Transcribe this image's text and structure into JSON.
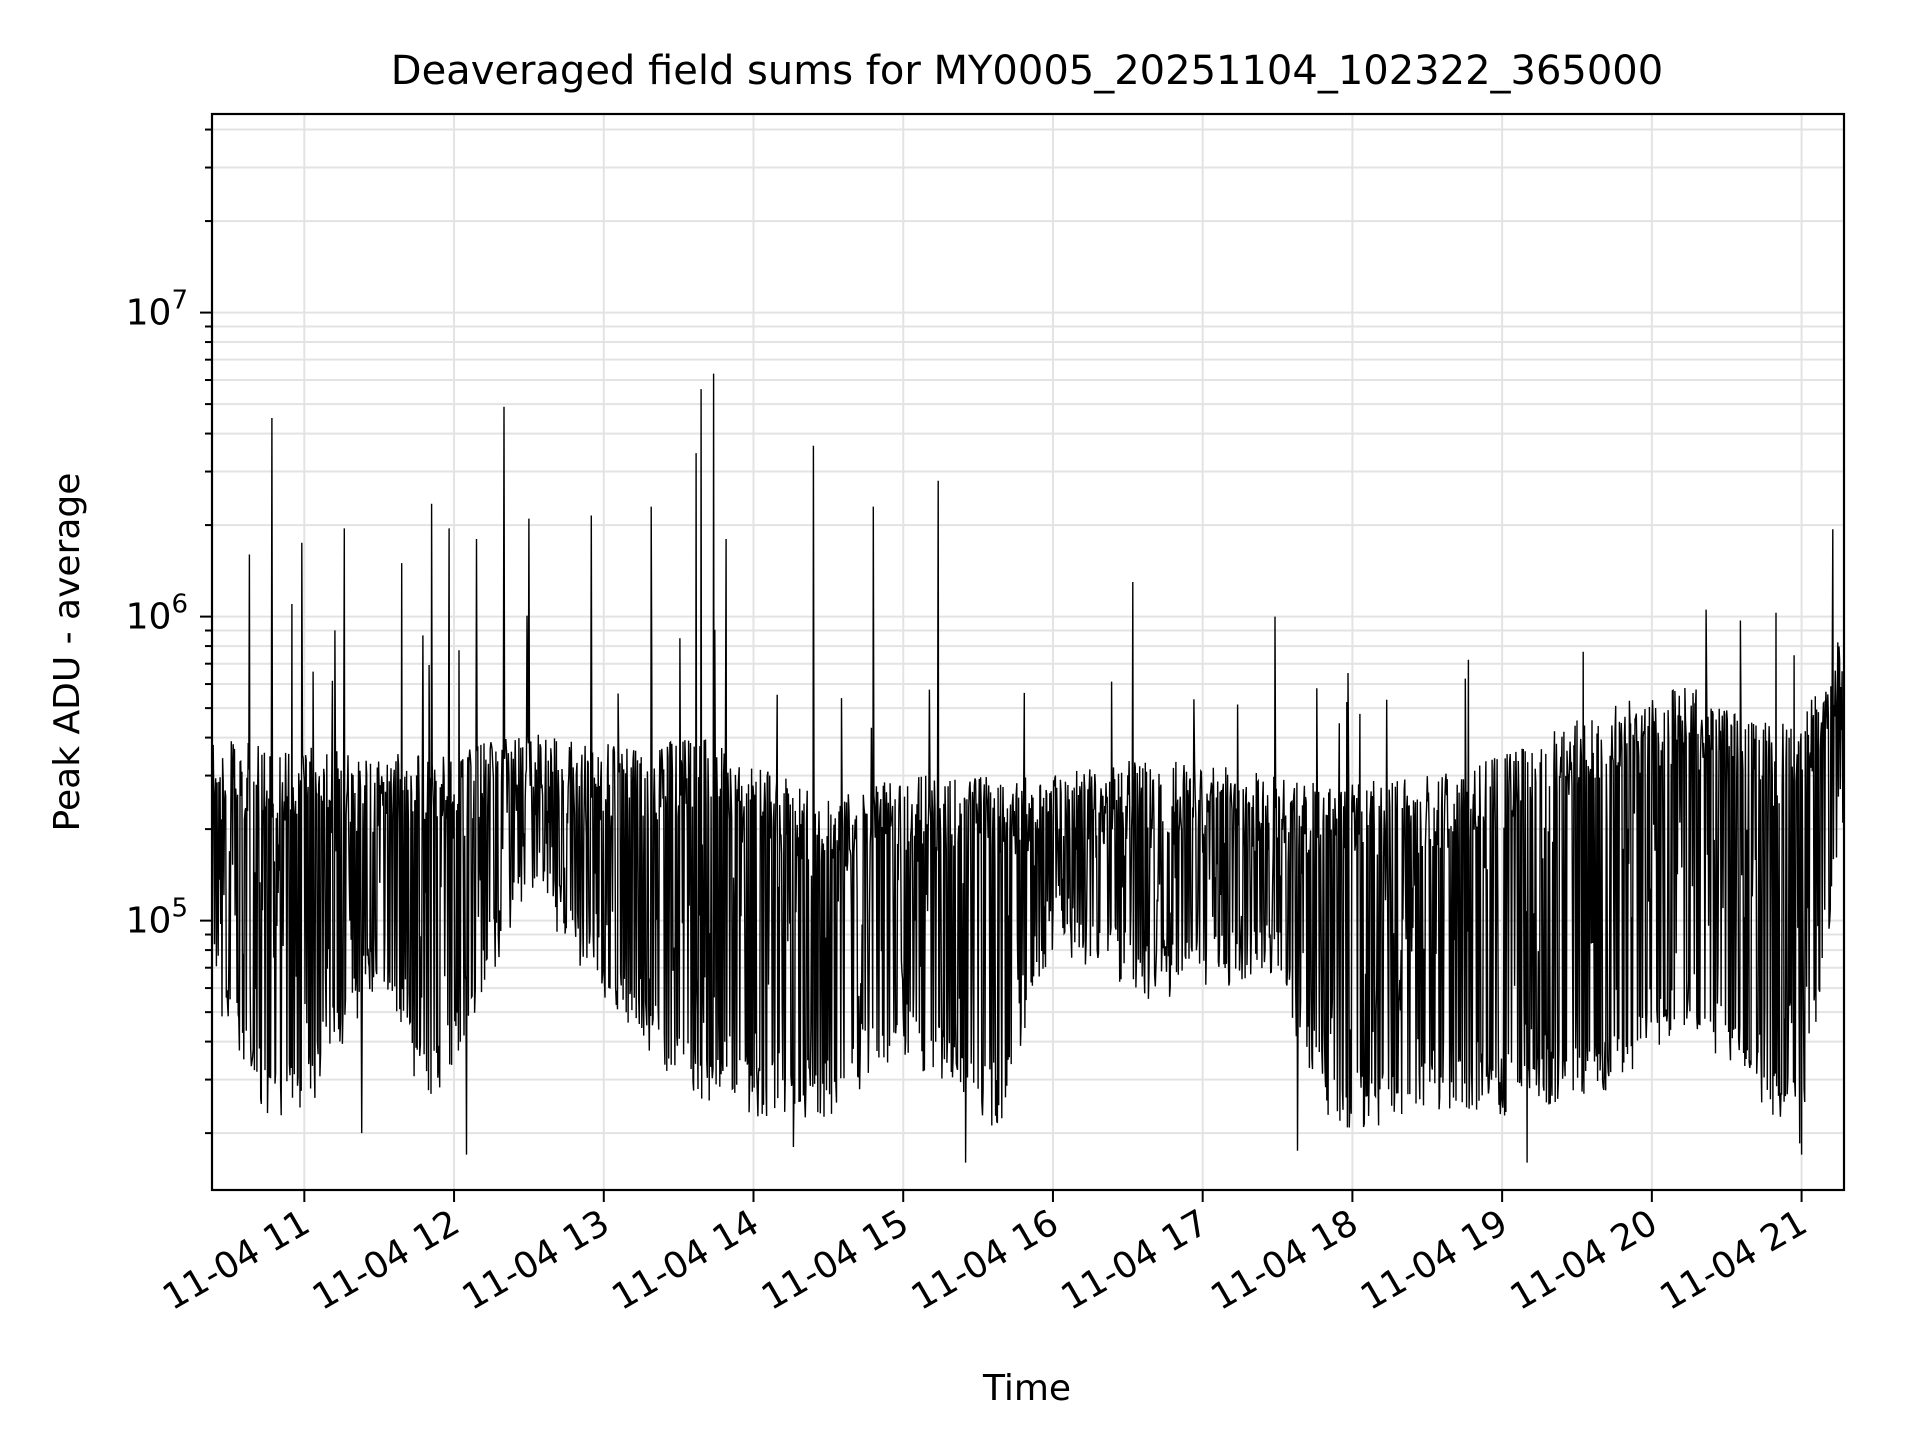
{
  "chart_data": {
    "type": "line",
    "title": "Deaveraged field sums for MY0005_20251104_102322_365000",
    "xlabel": "Time",
    "ylabel": "Peak ADU - average",
    "yscale": "log",
    "ylim": [
      13000,
      45000000
    ],
    "xlim": [
      "11-04 10:23",
      "11-04 21:17"
    ],
    "grid": true,
    "line_color": "#000000",
    "x_ticks": [
      {
        "time": "11-04 11:00",
        "label": "11-04 11"
      },
      {
        "time": "11-04 12:00",
        "label": "11-04 12"
      },
      {
        "time": "11-04 13:00",
        "label": "11-04 13"
      },
      {
        "time": "11-04 14:00",
        "label": "11-04 14"
      },
      {
        "time": "11-04 15:00",
        "label": "11-04 15"
      },
      {
        "time": "11-04 16:00",
        "label": "11-04 16"
      },
      {
        "time": "11-04 17:00",
        "label": "11-04 17"
      },
      {
        "time": "11-04 18:00",
        "label": "11-04 18"
      },
      {
        "time": "11-04 19:00",
        "label": "11-04 19"
      },
      {
        "time": "11-04 20:00",
        "label": "11-04 20"
      },
      {
        "time": "11-04 21:00",
        "label": "11-04 21"
      }
    ],
    "y_ticks": [
      {
        "value": 100000,
        "base": "10",
        "exp": "5"
      },
      {
        "value": 1000000,
        "base": "10",
        "exp": "6"
      },
      {
        "value": 10000000,
        "base": "10",
        "exp": "7"
      }
    ],
    "series": [
      {
        "values_note": "",
        "envelope": [
          {
            "time": "11-04 10:23",
            "low": 60000,
            "high": 400000
          },
          {
            "time": "11-04 10:45",
            "low": 25000,
            "high": 380000
          },
          {
            "time": "11-04 11:00",
            "low": 25000,
            "high": 380000
          },
          {
            "time": "11-04 11:30",
            "low": 70000,
            "high": 350000
          },
          {
            "time": "11-04 11:50",
            "low": 25000,
            "high": 360000
          },
          {
            "time": "11-04 12:30",
            "low": 140000,
            "high": 420000
          },
          {
            "time": "11-04 13:00",
            "low": 60000,
            "high": 380000
          },
          {
            "time": "11-04 13:40",
            "low": 25000,
            "high": 400000
          },
          {
            "time": "11-04 14:30",
            "low": 25000,
            "high": 250000
          },
          {
            "time": "11-04 15:00",
            "low": 40000,
            "high": 300000
          },
          {
            "time": "11-04 15:40",
            "low": 22000,
            "high": 300000
          },
          {
            "time": "11-04 16:00",
            "low": 90000,
            "high": 300000
          },
          {
            "time": "11-04 16:40",
            "low": 60000,
            "high": 350000
          },
          {
            "time": "11-04 17:30",
            "low": 70000,
            "high": 300000
          },
          {
            "time": "11-04 17:50",
            "low": 22000,
            "high": 280000
          },
          {
            "time": "11-04 18:30",
            "low": 25000,
            "high": 300000
          },
          {
            "time": "11-04 19:00",
            "low": 25000,
            "high": 350000
          },
          {
            "time": "11-04 19:40",
            "low": 30000,
            "high": 500000
          },
          {
            "time": "11-04 20:15",
            "low": 50000,
            "high": 600000
          },
          {
            "time": "11-04 20:40",
            "low": 30000,
            "high": 450000
          },
          {
            "time": "11-04 21:00",
            "low": 20000,
            "high": 450000
          },
          {
            "time": "11-04 21:17",
            "low": 250000,
            "high": 950000
          }
        ],
        "spikes": [
          {
            "time": "11-04 10:38",
            "value": 1600000
          },
          {
            "time": "11-04 10:47",
            "value": 4500000
          },
          {
            "time": "11-04 10:55",
            "value": 1100000
          },
          {
            "time": "11-04 10:59",
            "value": 1750000
          },
          {
            "time": "11-04 11:16",
            "value": 1950000
          },
          {
            "time": "11-04 11:39",
            "value": 1500000
          },
          {
            "time": "11-04 11:51",
            "value": 2350000
          },
          {
            "time": "11-04 11:58",
            "value": 1950000
          },
          {
            "time": "11-04 12:09",
            "value": 1800000
          },
          {
            "time": "11-04 12:20",
            "value": 4900000
          },
          {
            "time": "11-04 12:30",
            "value": 2100000
          },
          {
            "time": "11-04 12:55",
            "value": 2150000
          },
          {
            "time": "11-04 13:19",
            "value": 2300000
          },
          {
            "time": "11-04 13:37",
            "value": 3450000
          },
          {
            "time": "11-04 13:39",
            "value": 5600000
          },
          {
            "time": "11-04 13:44",
            "value": 6300000
          },
          {
            "time": "11-04 13:49",
            "value": 1800000
          },
          {
            "time": "11-04 14:24",
            "value": 3650000
          },
          {
            "time": "11-04 14:48",
            "value": 2300000
          },
          {
            "time": "11-04 15:14",
            "value": 2800000
          },
          {
            "time": "11-04 16:32",
            "value": 1300000
          },
          {
            "time": "11-04 17:29",
            "value": 1000000
          },
          {
            "time": "11-04 21:17",
            "value": 950000
          }
        ],
        "dips": [
          {
            "time": "11-04 11:23",
            "value": 20000
          },
          {
            "time": "11-04 12:05",
            "value": 17000
          },
          {
            "time": "11-04 14:16",
            "value": 18000
          },
          {
            "time": "11-04 15:25",
            "value": 16000
          },
          {
            "time": "11-04 17:38",
            "value": 17500
          },
          {
            "time": "11-04 19:10",
            "value": 16000
          },
          {
            "time": "11-04 21:00",
            "value": 17000
          }
        ]
      }
    ]
  }
}
